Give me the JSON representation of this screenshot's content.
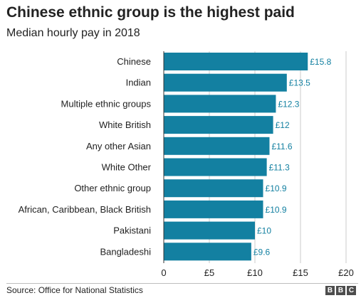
{
  "header": {
    "title": "Chinese ethnic group is the highest paid",
    "subtitle": "Median hourly pay in 2018"
  },
  "footer": {
    "source": "Source: Office for National Statistics",
    "logo_letters": [
      "B",
      "B",
      "C"
    ]
  },
  "colors": {
    "bar": "#1380a1",
    "value_label": "#1380a1",
    "gridline": "#cbcbcb",
    "text": "#222222"
  },
  "chart_data": {
    "type": "bar",
    "orientation": "horizontal",
    "title": "Chinese ethnic group is the highest paid",
    "subtitle": "Median hourly pay in 2018",
    "categories": [
      "Chinese",
      "Indian",
      "Multiple ethnic groups",
      "White British",
      "Any other Asian",
      "White Other",
      "Other ethnic group",
      "African, Caribbean, Black British",
      "Pakistani",
      "Bangladeshi"
    ],
    "values": [
      15.8,
      13.5,
      12.3,
      12,
      11.6,
      11.3,
      10.9,
      10.9,
      10,
      9.6
    ],
    "value_labels": [
      "£15.8",
      "£13.5",
      "£12.3",
      "£12",
      "£11.6",
      "£11.3",
      "£10.9",
      "£10.9",
      "£10",
      "£9.6"
    ],
    "xlim": [
      0,
      20
    ],
    "xticks": [
      0,
      5,
      10,
      15,
      20
    ],
    "xtick_labels": [
      "0",
      "£5",
      "£10",
      "£15",
      "£20"
    ],
    "grid": true
  }
}
